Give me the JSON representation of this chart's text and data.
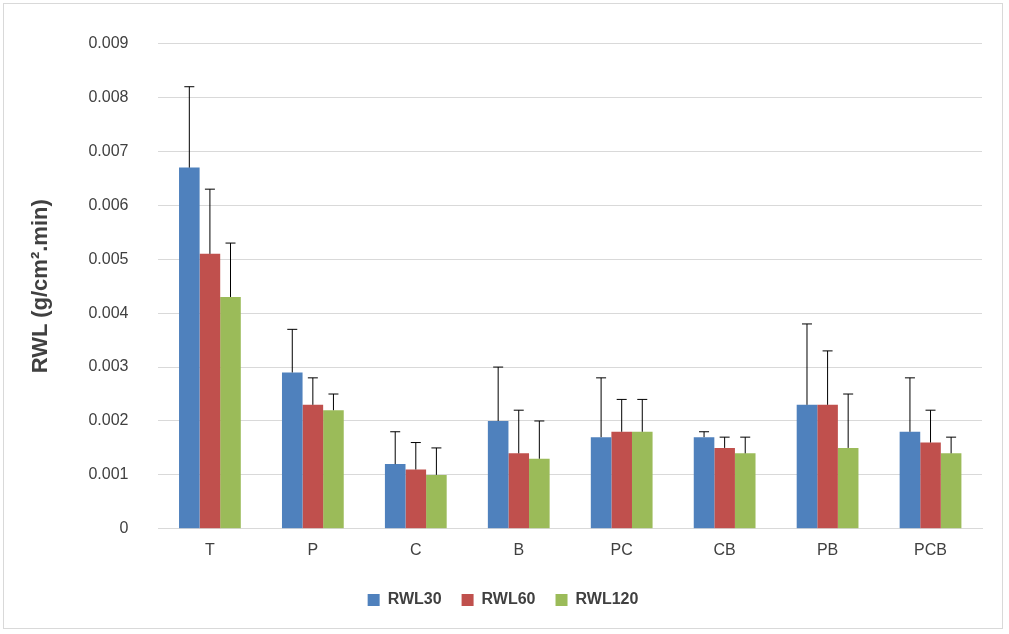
{
  "chart_data": {
    "type": "bar",
    "ylabel": "RWL (g/cm².min)",
    "categories": [
      "T",
      "P",
      "C",
      "B",
      "PC",
      "CB",
      "PB",
      "PCB"
    ],
    "series": [
      {
        "name": "RWL30",
        "color": "#4f81bd",
        "values": [
          0.0067,
          0.0029,
          0.0012,
          0.002,
          0.0017,
          0.0017,
          0.0023,
          0.0018
        ],
        "errors": [
          [
            0.0067,
            0.0082
          ],
          [
            0.0029,
            0.0037
          ],
          [
            0.0012,
            0.0018
          ],
          [
            0.002,
            0.003
          ],
          [
            0.0017,
            0.0028
          ],
          [
            0.0017,
            0.0018
          ],
          [
            0.0023,
            0.0038
          ],
          [
            0.0018,
            0.0028
          ]
        ]
      },
      {
        "name": "RWL60",
        "color": "#c0504d",
        "values": [
          0.0051,
          0.0023,
          0.0011,
          0.0014,
          0.0018,
          0.0015,
          0.0023,
          0.0016
        ],
        "errors": [
          [
            0.0051,
            0.0063
          ],
          [
            0.0023,
            0.0028
          ],
          [
            0.0011,
            0.0016
          ],
          [
            0.0014,
            0.0022
          ],
          [
            0.0018,
            0.0024
          ],
          [
            0.0015,
            0.0017
          ],
          [
            0.0023,
            0.0033
          ],
          [
            0.0016,
            0.0022
          ]
        ]
      },
      {
        "name": "RWL120",
        "color": "#9bbb59",
        "values": [
          0.0043,
          0.0022,
          0.001,
          0.0013,
          0.0018,
          0.0014,
          0.0015,
          0.0014
        ],
        "errors": [
          [
            0.0043,
            0.0053
          ],
          [
            0.0022,
            0.0025
          ],
          [
            0.001,
            0.0015
          ],
          [
            0.0013,
            0.002
          ],
          [
            0.0018,
            0.0024
          ],
          [
            0.0014,
            0.0017
          ],
          [
            0.0015,
            0.0025
          ],
          [
            0.0014,
            0.0017
          ]
        ]
      }
    ],
    "ylim": [
      0,
      0.009
    ],
    "yticks": [
      0,
      0.001,
      0.002,
      0.003,
      0.004,
      0.005,
      0.006,
      0.007,
      0.008,
      0.009
    ],
    "grid": "y",
    "legend": "bottom"
  }
}
